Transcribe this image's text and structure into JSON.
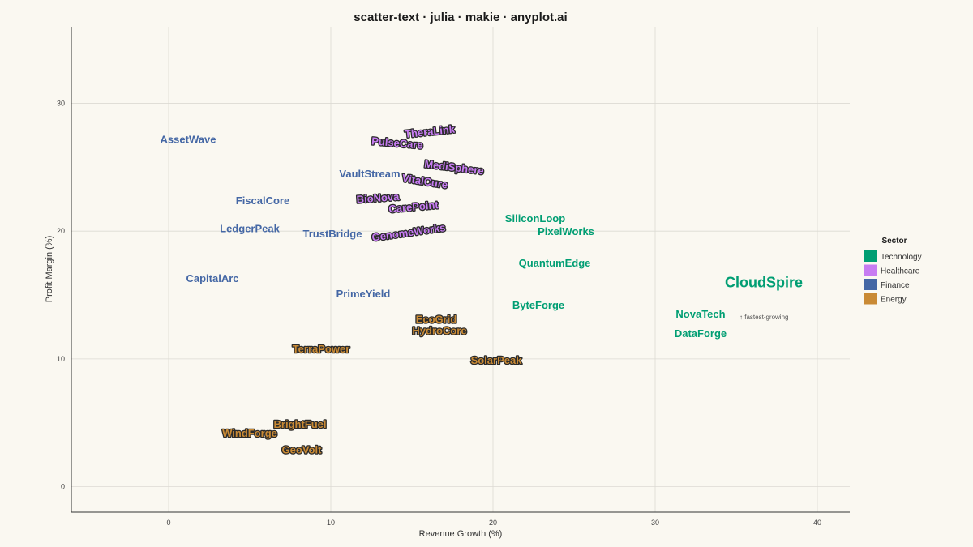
{
  "chart_data": {
    "type": "scatter",
    "title": "scatter-text · julia · makie · anyplot.ai",
    "xlabel": "Revenue Growth (%)",
    "ylabel": "Profit Margin (%)",
    "xlim": [
      -6,
      42
    ],
    "ylim": [
      -2,
      36
    ],
    "x_ticks": [
      0,
      10,
      20,
      30,
      40
    ],
    "y_ticks": [
      0,
      10,
      20,
      30
    ],
    "grid": true,
    "legend": {
      "title": "Sector",
      "placement": "right",
      "entries": [
        {
          "name": "Technology",
          "color": "#009E73"
        },
        {
          "name": "Healthcare",
          "color": "#C77CF2"
        },
        {
          "name": "Finance",
          "color": "#4467A5"
        },
        {
          "name": "Energy",
          "color": "#C98A35"
        }
      ]
    },
    "sector_colors": {
      "Technology": "#009E73",
      "Healthcare": "#C77CF2",
      "Finance": "#4467A5",
      "Energy": "#C98A35"
    },
    "outlined_sectors": [
      "Healthcare",
      "Energy"
    ],
    "points": [
      {
        "label": "AssetWave",
        "sector": "Finance",
        "x": 1.2,
        "y": 27.2,
        "rotate": 0
      },
      {
        "label": "FiscalCore",
        "sector": "Finance",
        "x": 5.8,
        "y": 22.4,
        "rotate": 0
      },
      {
        "label": "LedgerPeak",
        "sector": "Finance",
        "x": 5.0,
        "y": 20.2,
        "rotate": 0
      },
      {
        "label": "TrustBridge",
        "sector": "Finance",
        "x": 10.1,
        "y": 19.8,
        "rotate": 0
      },
      {
        "label": "CapitalArc",
        "sector": "Finance",
        "x": 2.7,
        "y": 16.3,
        "rotate": 0
      },
      {
        "label": "VaultStream",
        "sector": "Finance",
        "x": 12.4,
        "y": 24.5,
        "rotate": 0
      },
      {
        "label": "PrimeYield",
        "sector": "Finance",
        "x": 12.0,
        "y": 15.1,
        "rotate": 0
      },
      {
        "label": "TheraLink",
        "sector": "Healthcare",
        "x": 16.1,
        "y": 27.8,
        "rotate": -6
      },
      {
        "label": "PulseCare",
        "sector": "Healthcare",
        "x": 14.1,
        "y": 26.9,
        "rotate": 5
      },
      {
        "label": "MediSphere",
        "sector": "Healthcare",
        "x": 17.6,
        "y": 25.0,
        "rotate": 7
      },
      {
        "label": "VitalCure",
        "sector": "Healthcare",
        "x": 15.8,
        "y": 23.9,
        "rotate": 9
      },
      {
        "label": "BioNova",
        "sector": "Healthcare",
        "x": 12.9,
        "y": 22.6,
        "rotate": -4
      },
      {
        "label": "CarePoint",
        "sector": "Healthcare",
        "x": 15.1,
        "y": 21.9,
        "rotate": -5
      },
      {
        "label": "GenomeWorks",
        "sector": "Healthcare",
        "x": 14.8,
        "y": 19.9,
        "rotate": -8
      },
      {
        "label": "SiliconLoop",
        "sector": "Technology",
        "x": 22.6,
        "y": 21.0,
        "rotate": 0
      },
      {
        "label": "PixelWorks",
        "sector": "Technology",
        "x": 24.5,
        "y": 20.0,
        "rotate": 0
      },
      {
        "label": "QuantumEdge",
        "sector": "Technology",
        "x": 23.8,
        "y": 17.5,
        "rotate": 0
      },
      {
        "label": "ByteForge",
        "sector": "Technology",
        "x": 22.8,
        "y": 14.2,
        "rotate": 0
      },
      {
        "label": "CloudSpire",
        "sector": "Technology",
        "x": 36.7,
        "y": 16.0,
        "rotate": 0,
        "highlight": true
      },
      {
        "label": "NovaTech",
        "sector": "Technology",
        "x": 32.8,
        "y": 13.5,
        "rotate": 0
      },
      {
        "label": "DataForge",
        "sector": "Technology",
        "x": 32.8,
        "y": 12.0,
        "rotate": 0
      },
      {
        "label": "EcoGrid",
        "sector": "Energy",
        "x": 16.5,
        "y": 13.1,
        "rotate": 0
      },
      {
        "label": "HydroCore",
        "sector": "Energy",
        "x": 16.7,
        "y": 12.2,
        "rotate": 0
      },
      {
        "label": "TerraPower",
        "sector": "Energy",
        "x": 9.4,
        "y": 10.8,
        "rotate": 0
      },
      {
        "label": "SolarPeak",
        "sector": "Energy",
        "x": 20.2,
        "y": 9.9,
        "rotate": 0
      },
      {
        "label": "BrightFuel",
        "sector": "Energy",
        "x": 8.1,
        "y": 4.9,
        "rotate": 0
      },
      {
        "label": "WindForge",
        "sector": "Energy",
        "x": 5.0,
        "y": 4.2,
        "rotate": 0
      },
      {
        "label": "GeoVolt",
        "sector": "Energy",
        "x": 8.2,
        "y": 2.9,
        "rotate": 0
      }
    ],
    "annotation": {
      "text": "↑ fastest-growing",
      "x": 35.2,
      "y": 13.3
    }
  }
}
